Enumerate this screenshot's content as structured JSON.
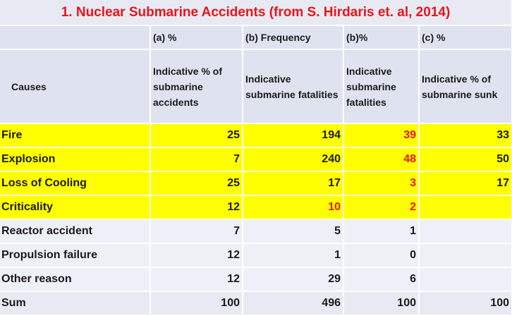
{
  "title": "1. Nuclear Submarine Accidents (from S. Hirdaris et. al, 2014)",
  "subheaders": [
    "(a) %",
    "(b) Frequency",
    "(b)%",
    "(c) %"
  ],
  "headers": {
    "causes": "Causes",
    "col_a": "Indicative % of submarine accidents",
    "col_b": "Indicative submarine fatalities",
    "col_c": "Indicative submarine fatalities",
    "col_d": "Indicative % of submarine sunk"
  },
  "rows": [
    {
      "cause": "Fire",
      "a": "25",
      "b": "194",
      "c": "39",
      "d": "33",
      "highlight": true
    },
    {
      "cause": "Explosion",
      "a": "7",
      "b": "240",
      "c": "48",
      "d": "50",
      "highlight": true
    },
    {
      "cause": "Loss of Cooling",
      "a": "25",
      "b": "17",
      "c": "3",
      "d": "17",
      "highlight": true
    },
    {
      "cause": "Criticality",
      "a": "12",
      "b": "10",
      "c": "2",
      "d": "",
      "highlight": true
    },
    {
      "cause": "Reactor accident",
      "a": "7",
      "b": "5",
      "c": "1",
      "d": "",
      "highlight": false
    },
    {
      "cause": "Propulsion failure",
      "a": "12",
      "b": "1",
      "c": "0",
      "d": "",
      "highlight": false
    },
    {
      "cause": "Other reason",
      "a": "12",
      "b": "29",
      "c": "6",
      "d": "",
      "highlight": false
    }
  ],
  "sum": {
    "label": "Sum",
    "a": "100",
    "b": "496",
    "c": "100",
    "d": "100"
  },
  "colors": {
    "highlight": "#ffff00",
    "red_text": "#e8141b",
    "cell_bg": "#eef0f7"
  }
}
